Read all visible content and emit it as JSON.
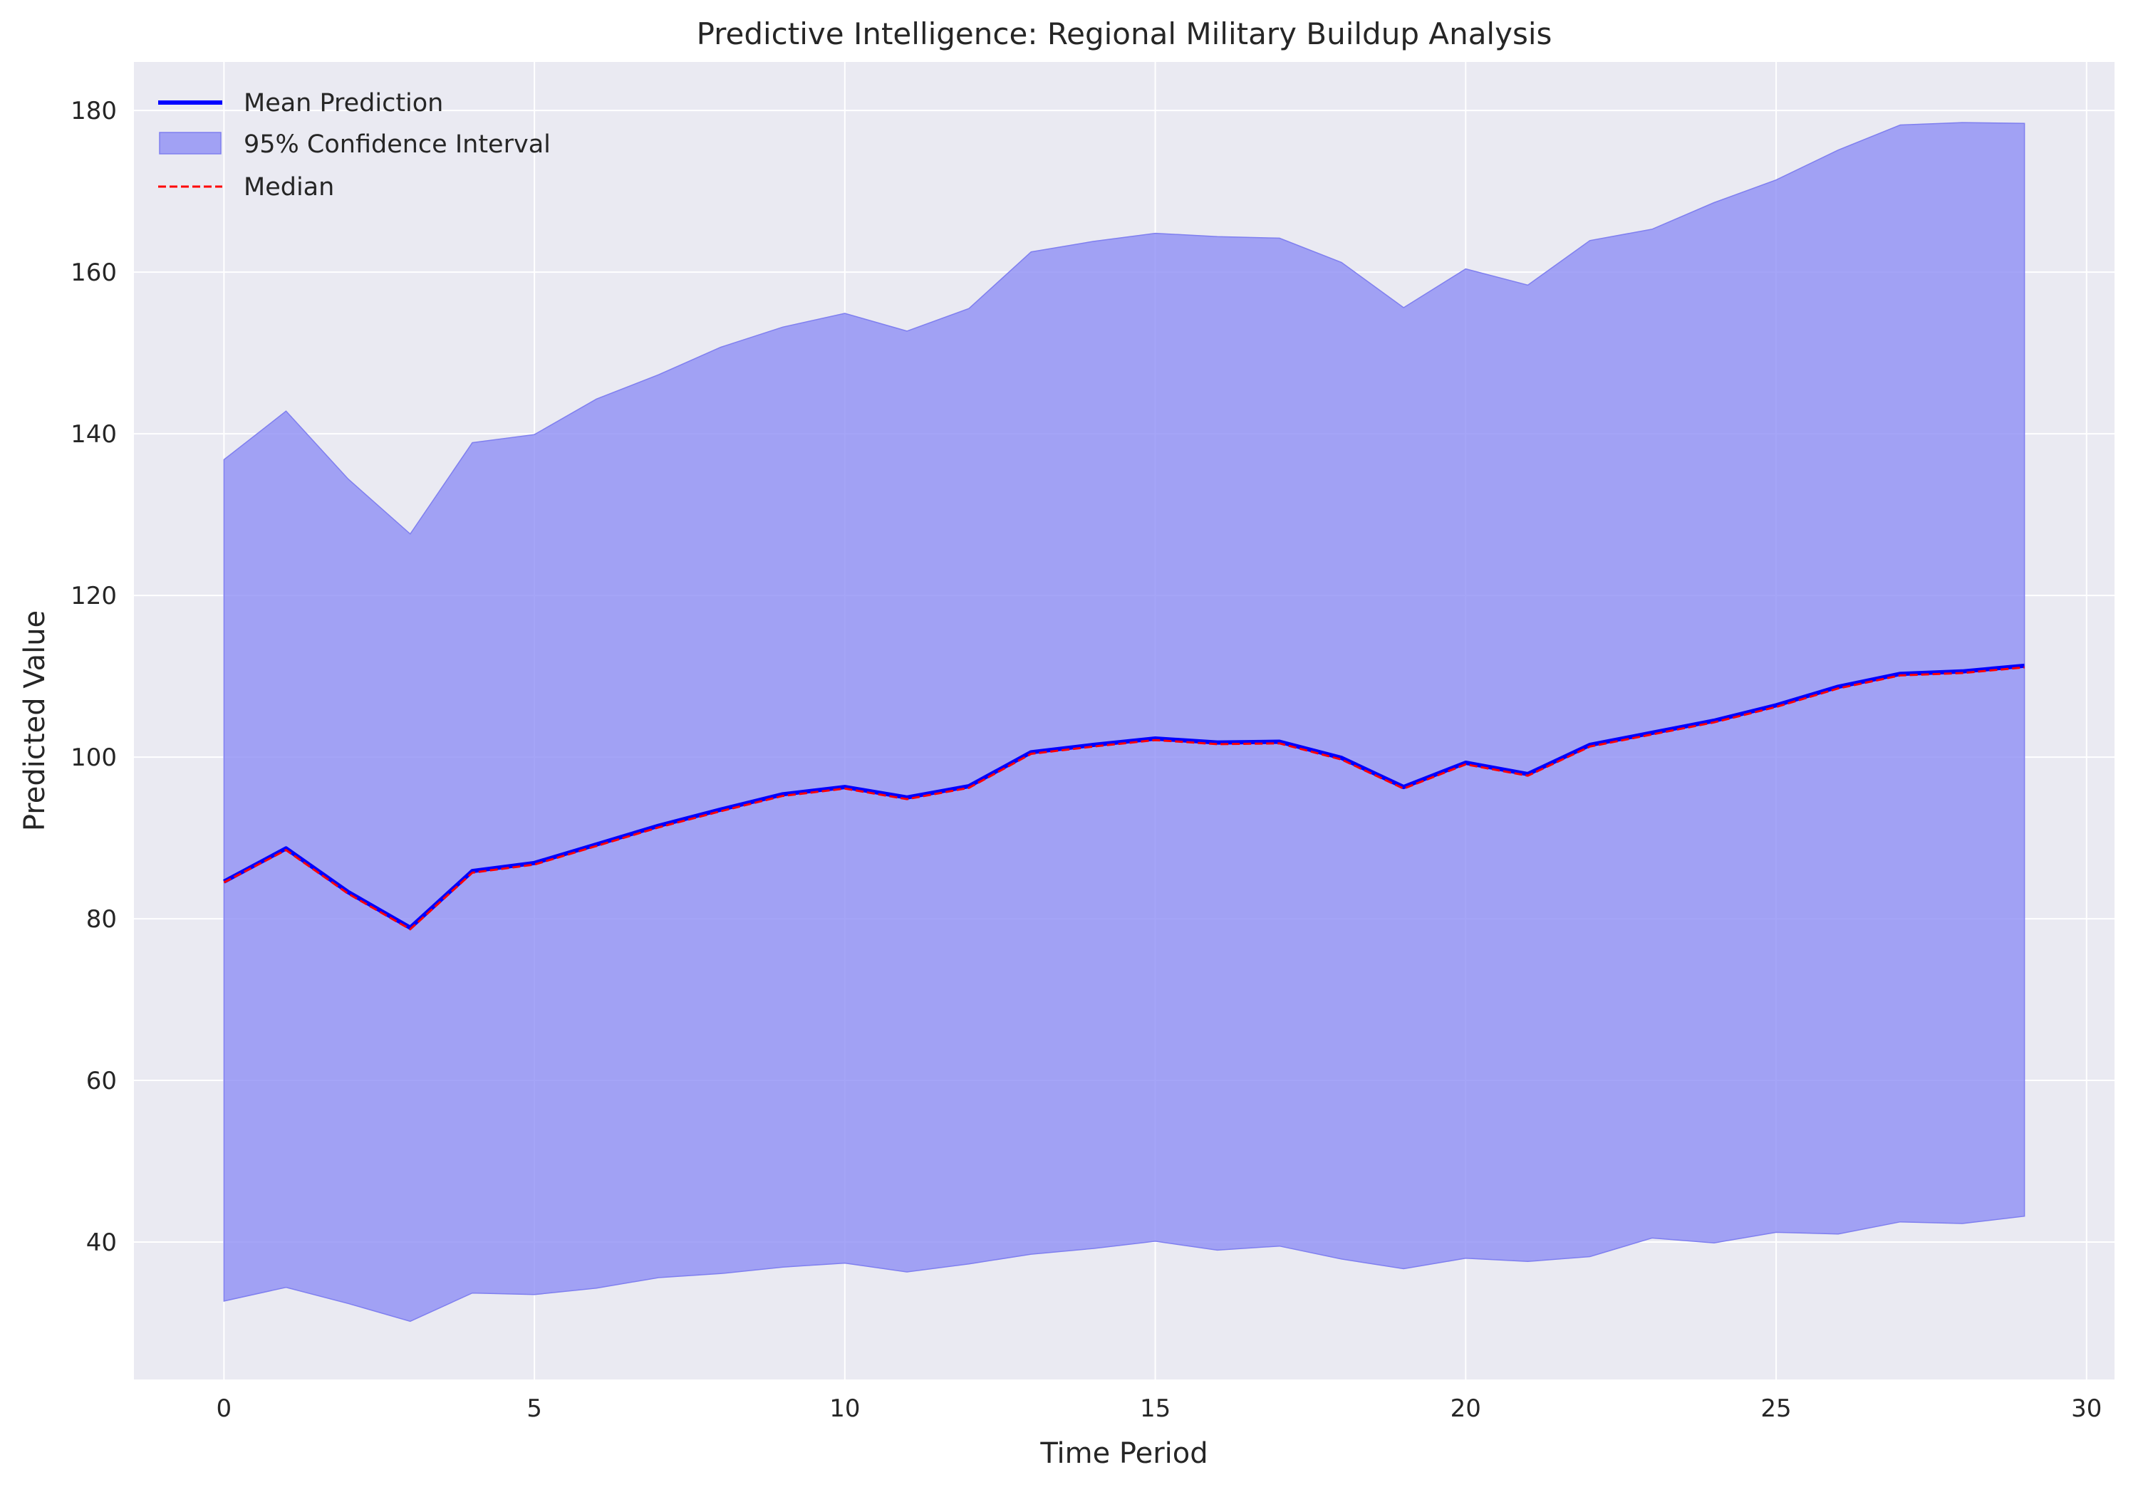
{
  "chart_data": {
    "type": "line",
    "title": "Predictive Intelligence: Regional Military Buildup Analysis",
    "xlabel": "Time Period",
    "ylabel": "Predicted Value",
    "xlim": [
      -1.45,
      30.45
    ],
    "ylim": [
      23,
      186
    ],
    "xticks": [
      0,
      5,
      10,
      15,
      20,
      25,
      30
    ],
    "yticks": [
      40,
      60,
      80,
      100,
      120,
      140,
      160,
      180
    ],
    "grid": true,
    "legend_position": "top-left",
    "x": [
      0,
      1,
      2,
      3,
      4,
      5,
      6,
      7,
      8,
      9,
      10,
      11,
      12,
      13,
      14,
      15,
      16,
      17,
      18,
      19,
      20,
      21,
      22,
      23,
      24,
      25,
      26,
      27,
      28,
      29
    ],
    "series": [
      {
        "name": "Mean Prediction",
        "style": "solid",
        "color": "#0000ff",
        "values": [
          84.6,
          88.7,
          83.3,
          78.9,
          85.9,
          86.9,
          89.2,
          91.5,
          93.5,
          95.4,
          96.3,
          95.0,
          96.4,
          100.6,
          101.5,
          102.3,
          101.8,
          101.9,
          99.9,
          96.3,
          99.3,
          97.9,
          101.5,
          103.0,
          104.5,
          106.4,
          108.7,
          110.3,
          110.6,
          111.3
        ]
      },
      {
        "name": "95% Confidence Interval",
        "style": "band",
        "color": "#8c8cf5",
        "lower": [
          32.7,
          34.4,
          32.4,
          30.2,
          33.7,
          33.5,
          34.3,
          35.6,
          36.1,
          36.9,
          37.4,
          36.3,
          37.3,
          38.5,
          39.2,
          40.1,
          39.0,
          39.5,
          37.9,
          36.7,
          38.0,
          37.6,
          38.2,
          40.5,
          39.9,
          41.2,
          41.0,
          42.5,
          42.3,
          43.2
        ],
        "upper": [
          136.8,
          142.8,
          134.4,
          127.6,
          138.9,
          139.9,
          144.3,
          147.3,
          150.7,
          153.2,
          154.9,
          152.7,
          155.5,
          162.5,
          163.8,
          164.8,
          164.4,
          164.2,
          161.2,
          155.6,
          160.4,
          158.4,
          163.9,
          165.3,
          168.6,
          171.4,
          175.1,
          178.2,
          178.5,
          178.4
        ]
      },
      {
        "name": "Median",
        "style": "dashed",
        "color": "#ff0000",
        "values": [
          84.5,
          88.5,
          83.1,
          78.7,
          85.7,
          86.7,
          89.0,
          91.3,
          93.3,
          95.2,
          96.1,
          94.8,
          96.2,
          100.4,
          101.3,
          102.1,
          101.6,
          101.7,
          99.7,
          96.1,
          99.1,
          97.7,
          101.3,
          102.8,
          104.3,
          106.2,
          108.5,
          110.1,
          110.4,
          111.1
        ]
      }
    ],
    "colors": {
      "plot_background": "#eaeaf2",
      "grid": "#ffffff",
      "text": "#262626"
    }
  }
}
